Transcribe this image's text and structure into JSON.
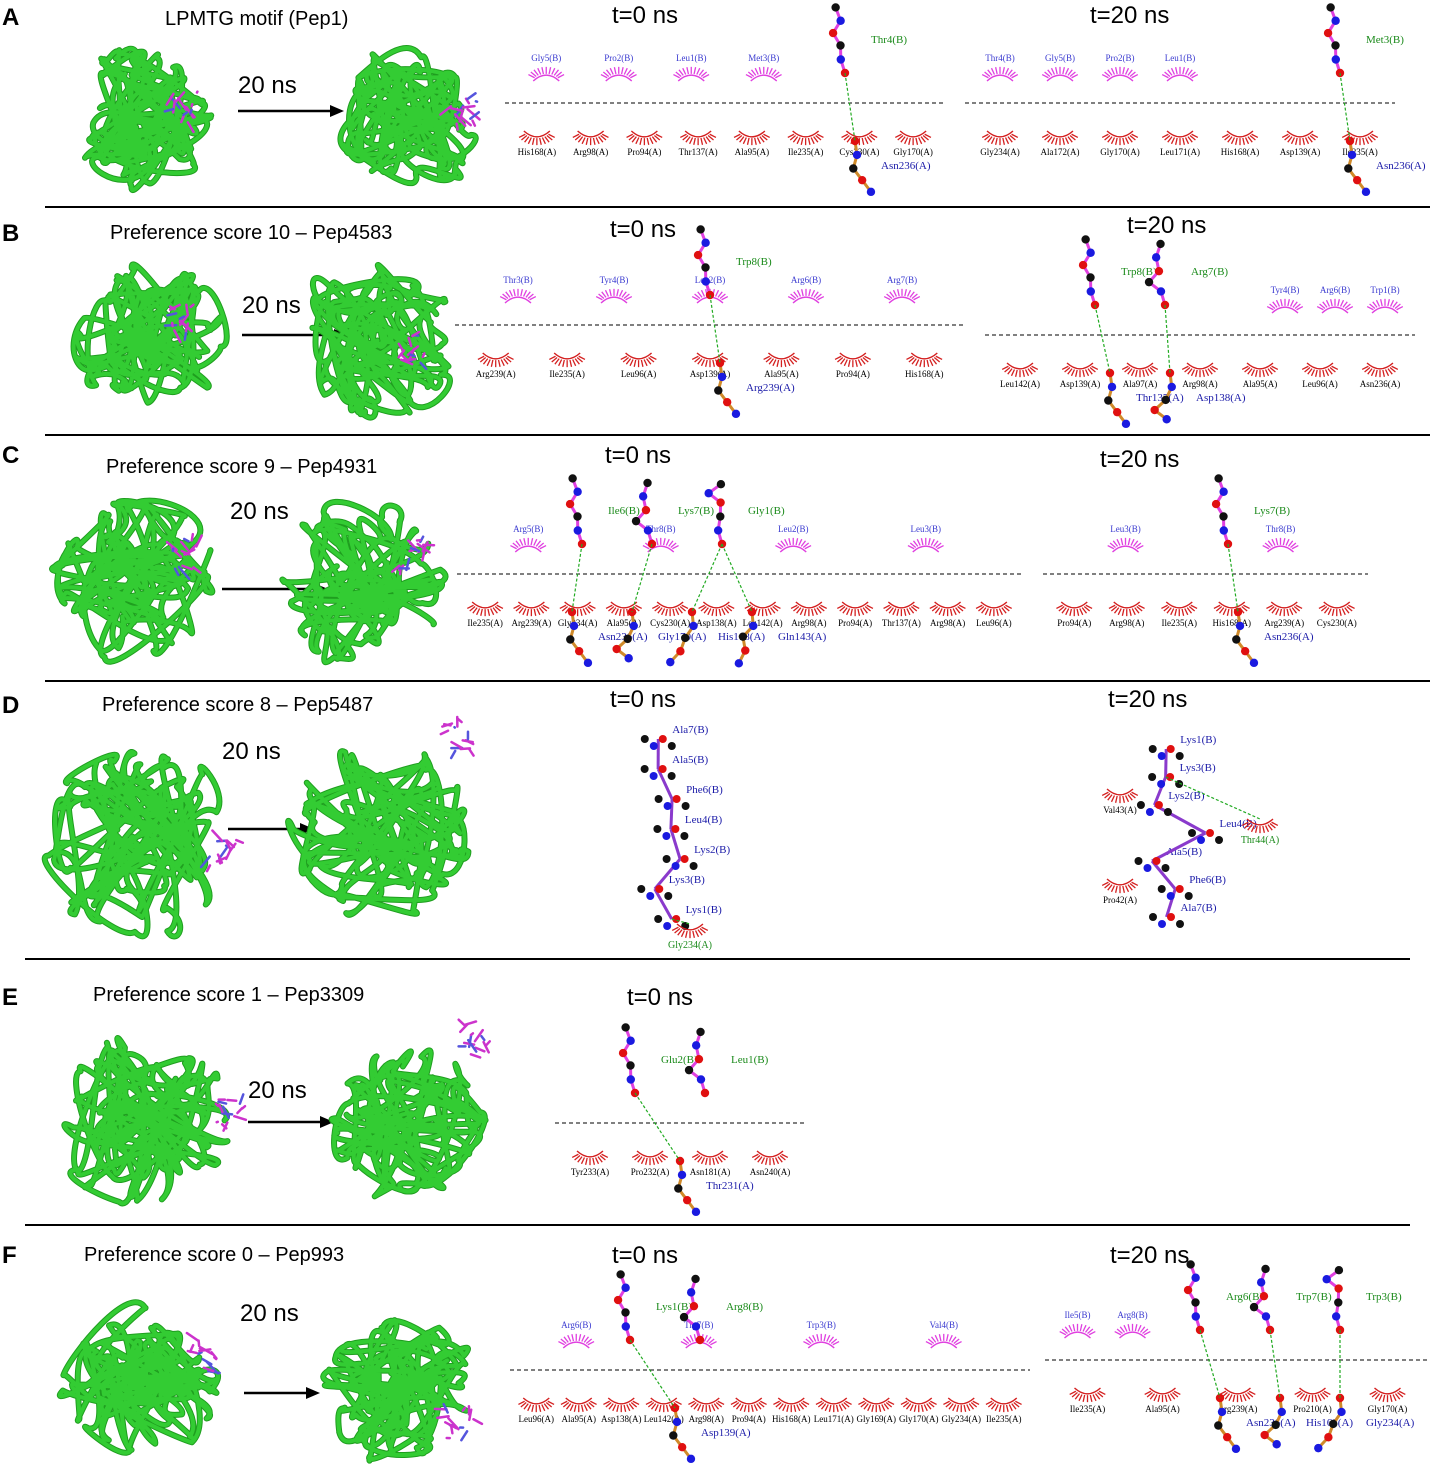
{
  "colors": {
    "protein": "#33cc33",
    "protein_dark": "#1f9e1f",
    "ligand": "#cc33cc",
    "hydrophobic_receptor": "#d42020",
    "hydrophobic_peptide": "#e040e0",
    "residue_receptor_label": "#1a1aa8",
    "residue_peptide_label": "#1a8a1a",
    "hbond": "#22aa22"
  },
  "duration_label": "20 ns",
  "panels": [
    {
      "letter": "A",
      "title": "LPMTG motif (Pep1)",
      "t0_label": "t=0 ns",
      "t20_label": "t=20 ns",
      "t0": {
        "peptide_contacts": [
          "Gly5(B)",
          "Pro2(B)",
          "Leu1(B)",
          "Met3(B)"
        ],
        "receptor_contacts": [
          "His168(A)",
          "Arg98(A)",
          "Pro94(A)",
          "Thr137(A)",
          "Ala95(A)",
          "Ile235(A)",
          "Cys230(A)",
          "Gly170(A)"
        ],
        "hbond_peptide": "Thr4(B)",
        "hbond_receptor": "Asn236(A)"
      },
      "t20": {
        "peptide_contacts": [
          "Thr4(B)",
          "Gly5(B)",
          "Pro2(B)",
          "Leu1(B)"
        ],
        "receptor_contacts": [
          "Gly234(A)",
          "Ala172(A)",
          "Gly170(A)",
          "Leu171(A)",
          "His168(A)",
          "Asp139(A)",
          "Ile235(A)"
        ],
        "hbond_peptide": "Met3(B)",
        "hbond_receptor": "Asn236(A)"
      }
    },
    {
      "letter": "B",
      "title": "Preference score 10 – Pep4583",
      "t0_label": "t=0 ns",
      "t20_label": "t=20 ns",
      "t0": {
        "peptide_contacts": [
          "Thr3(B)",
          "Tyr4(B)",
          "Leu2(B)",
          "Arg6(B)",
          "Arg7(B)"
        ],
        "receptor_contacts": [
          "Arg239(A)",
          "Ile235(A)",
          "Leu96(A)",
          "Asp139(A)",
          "Ala95(A)",
          "Pro94(A)",
          "His168(A)"
        ],
        "hbond_peptide": "Trp8(B)",
        "hbond_receptor": "Arg239(A)"
      },
      "t20": {
        "peptide_contacts": [
          "Tyr4(B)",
          "Arg6(B)",
          "Trp1(B)"
        ],
        "receptor_contacts": [
          "Leu142(A)",
          "Asp139(A)",
          "Ala97(A)",
          "Arg98(A)",
          "Ala95(A)",
          "Leu96(A)",
          "Asn236(A)"
        ],
        "hbond_peptide": "Trp8(B)",
        "hbond_peptide_2": "Arg7(B)",
        "hbond_receptor": "Thr137(A)",
        "hbond_receptor_2": "Asp138(A)"
      }
    },
    {
      "letter": "C",
      "title": "Preference score 9 – Pep4931",
      "t0_label": "t=0 ns",
      "t20_label": "t=20 ns",
      "t0": {
        "peptide_contacts": [
          "Arg5(B)",
          "Thr8(B)",
          "Leu2(B)",
          "Leu3(B)"
        ],
        "receptor_contacts": [
          "Ile235(A)",
          "Arg239(A)",
          "Gly234(A)",
          "Ala95(A)",
          "Cys230(A)",
          "Asp138(A)",
          "Leu142(A)",
          "Arg98(A)",
          "Pro94(A)",
          "Thr137(A)",
          "Arg98(A)",
          "Leu96(A)"
        ],
        "hbond_peptide": "Ile6(B)",
        "hbond_peptide_2": "Lys7(B)",
        "hbond_peptide_3": "Gly1(B)",
        "hbond_receptor": "Asn236(A)",
        "hbond_receptor_2": "Gly170(A)",
        "hbond_receptor_3": "His168(A)",
        "hbond_receptor_4": "Gln143(A)"
      },
      "t20": {
        "peptide_contacts": [
          "Leu3(B)",
          "Thr8(B)"
        ],
        "receptor_contacts": [
          "Pro94(A)",
          "Arg98(A)",
          "Ile235(A)",
          "His168(A)",
          "Arg239(A)",
          "Cys230(A)"
        ],
        "hbond_peptide": "Lys7(B)",
        "hbond_receptor": "Asn236(A)"
      }
    },
    {
      "letter": "D",
      "title": "Preference score 8 – Pep5487",
      "t0_label": "t=0 ns",
      "t20_label": "t=20 ns",
      "t0": {
        "peptide_residues": [
          "Ala7(B)",
          "Ala5(B)",
          "Phe6(B)",
          "Leu4(B)",
          "Lys2(B)",
          "Lys3(B)",
          "Lys1(B)"
        ],
        "hbond_receptor": "Gly234(A)"
      },
      "t20": {
        "peptide_residues": [
          "Lys1(B)",
          "Lys3(B)",
          "Lys2(B)",
          "Leu4(B)",
          "Ala5(B)",
          "Phe6(B)",
          "Ala7(B)"
        ],
        "receptor_contacts": [
          "Val43(A)",
          "Pro42(A)"
        ],
        "hbond_receptor": "Thr44(A)"
      }
    },
    {
      "letter": "E",
      "title": "Preference score 1 – Pep3309",
      "t0_label": "t=0 ns",
      "t0": {
        "receptor_contacts": [
          "Tyr233(A)",
          "Pro232(A)",
          "Asn181(A)",
          "Asn240(A)"
        ],
        "hbond_peptide": "Glu2(B)",
        "hbond_peptide_2": "Leu1(B)",
        "hbond_receptor": "Thr231(A)"
      }
    },
    {
      "letter": "F",
      "title": "Preference score 0 – Pep993",
      "t0_label": "t=0 ns",
      "t20_label": "t=20 ns",
      "t0": {
        "peptide_contacts": [
          "Arg6(B)",
          "Trp7(B)",
          "Trp3(B)",
          "Val4(B)"
        ],
        "receptor_contacts": [
          "Leu96(A)",
          "Ala95(A)",
          "Asp138(A)",
          "Leu142(A)",
          "Arg98(A)",
          "Pro94(A)",
          "His168(A)",
          "Leu171(A)",
          "Gly169(A)",
          "Gly170(A)",
          "Gly234(A)",
          "Ile235(A)"
        ],
        "hbond_peptide": "Lys1(B)",
        "hbond_peptide_2": "Arg8(B)",
        "hbond_receptor": "Asp139(A)"
      },
      "t20": {
        "peptide_contacts": [
          "Ile5(B)",
          "Arg8(B)"
        ],
        "receptor_contacts": [
          "Ile235(A)",
          "Ala95(A)",
          "Arg239(A)",
          "Pro210(A)",
          "Gly170(A)"
        ],
        "hbond_peptide": "Arg6(B)",
        "hbond_peptide_2": "Trp7(B)",
        "hbond_peptide_3": "Trp3(B)",
        "hbond_receptor": "Asn236(A)",
        "hbond_receptor_2": "His168(A)",
        "hbond_receptor_3": "Gly234(A)"
      }
    }
  ]
}
